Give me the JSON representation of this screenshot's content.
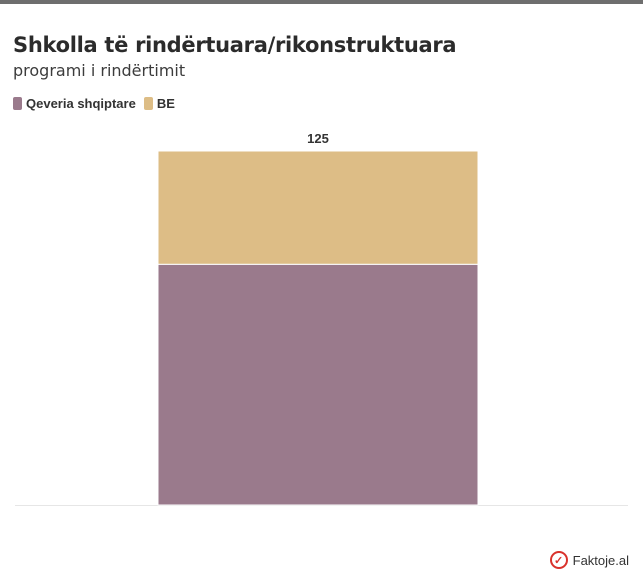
{
  "title": "Shkolla të rindërtuara/rikonstruktuara",
  "subtitle": "programi i rindërtimit",
  "legend": [
    {
      "label": "Qeveria shqiptare",
      "color": "#9a7a8c"
    },
    {
      "label": "BE",
      "color": "#ddbd86"
    }
  ],
  "chart_data": {
    "type": "bar",
    "stacked": true,
    "categories": [
      ""
    ],
    "series": [
      {
        "name": "Qeveria shqiptare",
        "values": [
          85
        ],
        "color": "#9a7a8c"
      },
      {
        "name": "BE",
        "values": [
          40
        ],
        "color": "#ddbd86"
      }
    ],
    "total_labels": [
      "125"
    ],
    "ylim": [
      0,
      125
    ],
    "grid": false,
    "legend_position": "top-left"
  },
  "logo": {
    "text": "Faktoje.al",
    "icon": "checkmark-icon"
  }
}
